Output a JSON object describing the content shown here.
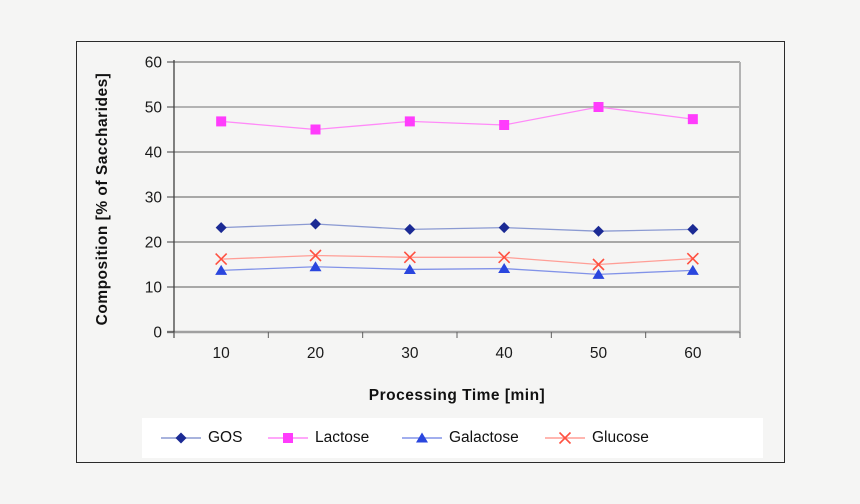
{
  "page": {
    "background": "#f5f5f4",
    "frame_border_color": "#2b2b2b",
    "legend_bg": "#ffffff"
  },
  "axis_style": {
    "gridline_dark": "#5a5a5a",
    "gridline_light": "#b3b3b3",
    "x_axis_color": "#a0a0a0",
    "y_axis_color": "#404040",
    "tick_color": "#606060",
    "label_color": "#1a1a1a"
  },
  "chart_data": {
    "type": "line",
    "title": "",
    "xlabel": "Processing Time [min]",
    "ylabel": "Composition [% of Saccharides]",
    "x": [
      10,
      20,
      30,
      40,
      50,
      60
    ],
    "xticks": [
      "10",
      "20",
      "30",
      "40",
      "50",
      "60"
    ],
    "yticks": [
      "0",
      "10",
      "20",
      "30",
      "40",
      "50",
      "60"
    ],
    "ylim": [
      0,
      60
    ],
    "ytick_interval": 10,
    "grid": true,
    "legend_position": "bottom",
    "series": [
      {
        "name": "GOS",
        "marker": "diamond",
        "marker_color": "#1b2a94",
        "line_color": "#8b9ad2",
        "values": [
          23.2,
          24.0,
          22.8,
          23.2,
          22.4,
          22.8
        ]
      },
      {
        "name": "Lactose",
        "marker": "square",
        "marker_color": "#ff3cfc",
        "line_color": "#ff8af8",
        "values": [
          46.8,
          45.0,
          46.8,
          46.0,
          50.0,
          47.3
        ]
      },
      {
        "name": "Galactose",
        "marker": "triangle",
        "marker_color": "#2a46de",
        "line_color": "#8293e8",
        "values": [
          13.7,
          14.5,
          13.9,
          14.1,
          12.8,
          13.7
        ]
      },
      {
        "name": "Glucose",
        "marker": "x",
        "marker_color": "#ff5040",
        "line_color": "#ff9e96",
        "values": [
          16.2,
          17.0,
          16.6,
          16.6,
          15.0,
          16.3
        ]
      }
    ]
  }
}
